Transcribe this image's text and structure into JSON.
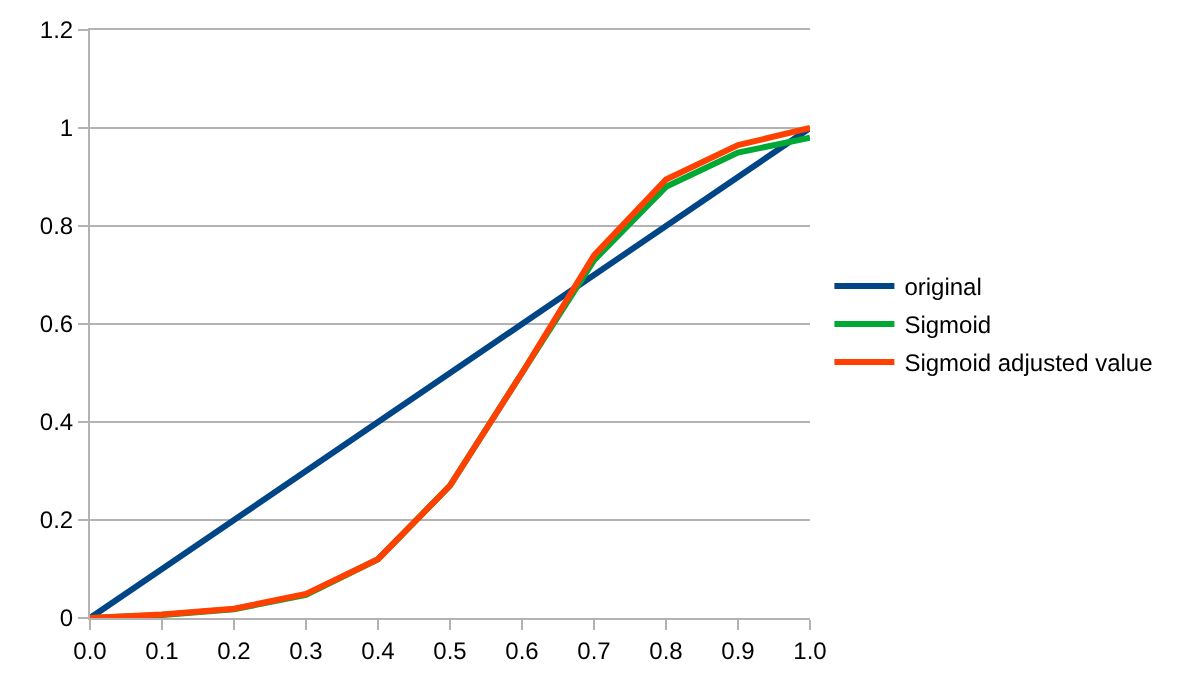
{
  "chart_data": {
    "type": "line",
    "x": [
      0.0,
      0.1,
      0.2,
      0.3,
      0.4,
      0.5,
      0.6,
      0.7,
      0.8,
      0.9,
      1.0
    ],
    "series": [
      {
        "name": "original",
        "color": "#004586",
        "values": [
          0.0,
          0.1,
          0.2,
          0.3,
          0.4,
          0.5,
          0.6,
          0.7,
          0.8,
          0.9,
          1.0
        ]
      },
      {
        "name": "Sigmoid",
        "color": "#00a933",
        "values": [
          0.0,
          0.006,
          0.018,
          0.047,
          0.12,
          0.27,
          0.5,
          0.73,
          0.88,
          0.95,
          0.98
        ]
      },
      {
        "name": "Sigmoid adjusted value",
        "color": "#ff4000",
        "values": [
          0.0,
          0.007,
          0.019,
          0.049,
          0.12,
          0.27,
          0.5,
          0.74,
          0.895,
          0.965,
          1.0
        ]
      }
    ],
    "xlim": [
      0.0,
      1.0
    ],
    "xticks": [
      {
        "value": 0,
        "label": "0.0"
      },
      {
        "value": 0.1,
        "label": "0.1"
      },
      {
        "value": 0.2,
        "label": "0.2"
      },
      {
        "value": 0.3,
        "label": "0.3"
      },
      {
        "value": 0.4,
        "label": "0.4"
      },
      {
        "value": 0.5,
        "label": "0.5"
      },
      {
        "value": 0.6,
        "label": "0.6"
      },
      {
        "value": 0.7,
        "label": "0.7"
      },
      {
        "value": 0.8,
        "label": "0.8"
      },
      {
        "value": 0.9,
        "label": "0.9"
      },
      {
        "value": 1.0,
        "label": "1.0"
      }
    ],
    "ylim": [
      0,
      1.2
    ],
    "yticks": [
      0,
      0.2,
      0.4,
      0.6,
      0.8,
      1,
      1.2
    ],
    "grid": "y",
    "legend": "right",
    "marker": "none",
    "line_style": "solid"
  }
}
